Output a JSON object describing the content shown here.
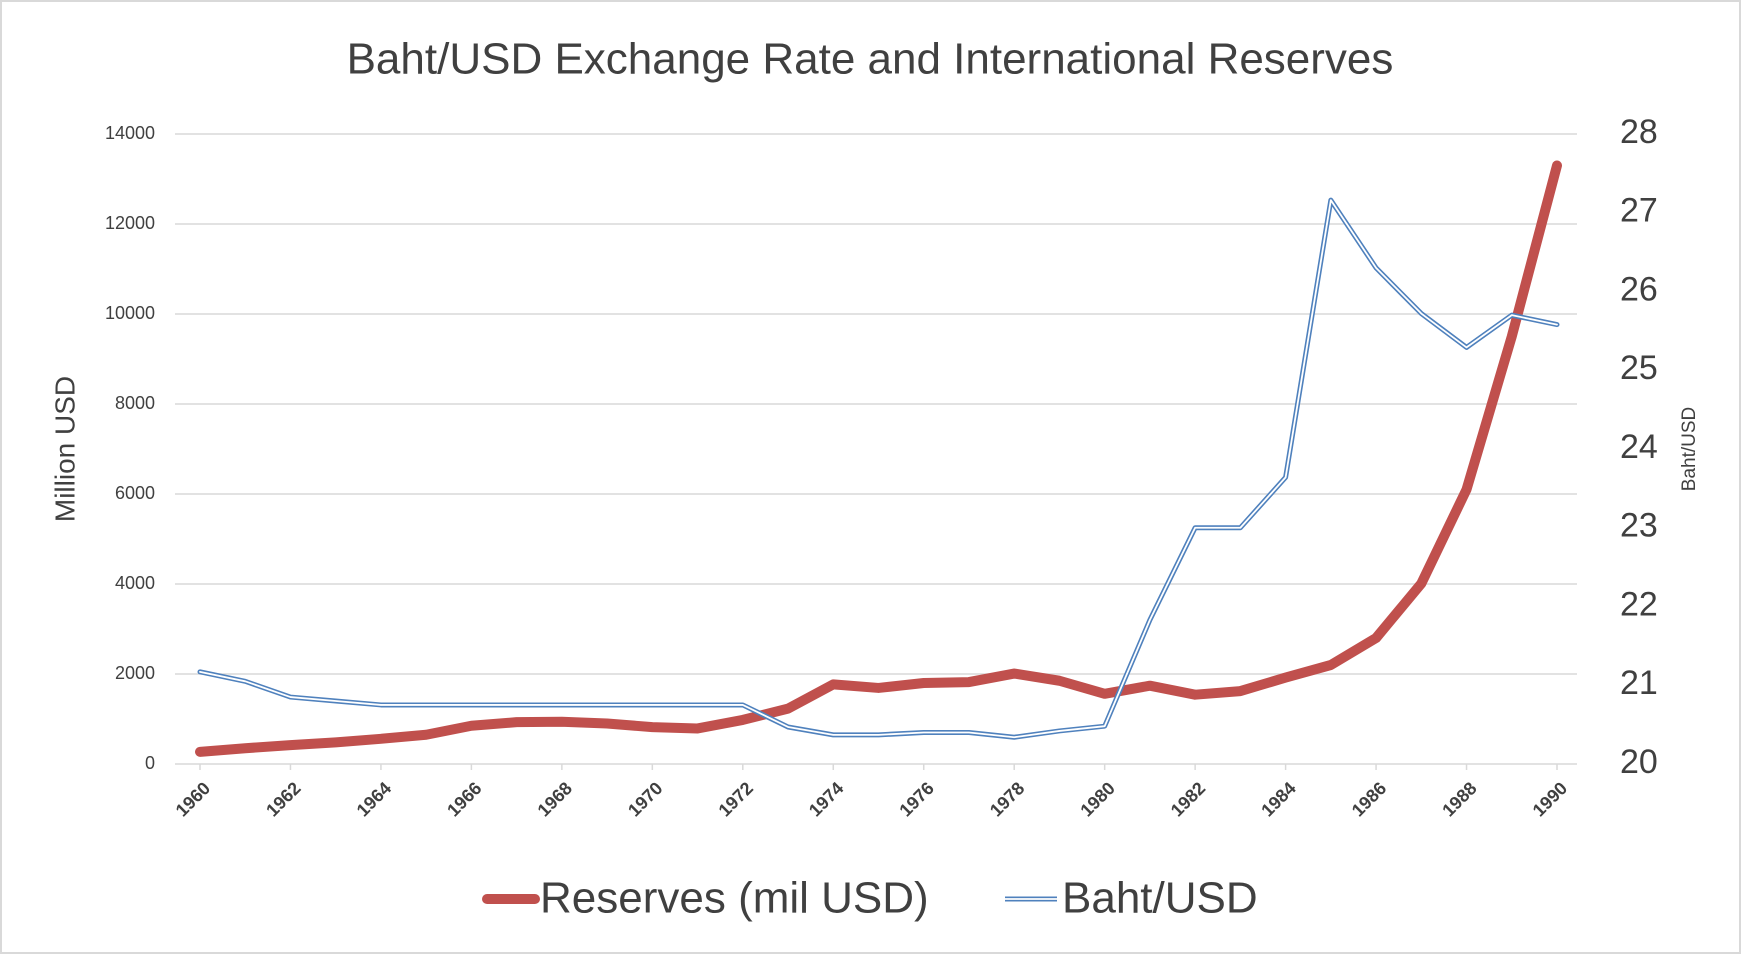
{
  "chart_data": {
    "type": "line",
    "title": "Baht/USD Exchange Rate and International Reserves",
    "y_label": "Million USD",
    "y2_label": "Baht/USD",
    "x": [
      1960,
      1961,
      1962,
      1963,
      1964,
      1965,
      1966,
      1967,
      1968,
      1969,
      1970,
      1971,
      1972,
      1973,
      1974,
      1975,
      1976,
      1977,
      1978,
      1979,
      1980,
      1981,
      1982,
      1983,
      1984,
      1985,
      1986,
      1987,
      1988,
      1989,
      1990
    ],
    "xlim": [
      1960,
      1990
    ],
    "xticks": [
      1960,
      1962,
      1964,
      1966,
      1968,
      1970,
      1972,
      1974,
      1976,
      1978,
      1980,
      1982,
      1984,
      1986,
      1988,
      1990
    ],
    "ylim": [
      0,
      14000
    ],
    "yticks": [
      0,
      2000,
      4000,
      6000,
      8000,
      10000,
      12000,
      14000
    ],
    "y2lim": [
      20,
      28
    ],
    "y2ticks": [
      20,
      21,
      22,
      23,
      24,
      25,
      26,
      27,
      28
    ],
    "grid": true,
    "legend": "bottom",
    "series": [
      {
        "name": "Reserves (mil USD)",
        "color": "#c0504d",
        "values": [
          270,
          350,
          420,
          480,
          560,
          650,
          850,
          930,
          940,
          900,
          820,
          790,
          980,
          1230,
          1770,
          1690,
          1800,
          1820,
          2010,
          1850,
          1560,
          1740,
          1540,
          1620,
          1920,
          2200,
          2800,
          4010,
          6100,
          9500,
          13300
        ]
      },
      {
        "name": "Baht/USD",
        "color": "#4f81bd",
        "axis": "y2",
        "values": [
          21.17,
          21.05,
          20.85,
          20.8,
          20.75,
          20.75,
          20.75,
          20.75,
          20.75,
          20.75,
          20.75,
          20.75,
          20.75,
          20.47,
          20.37,
          20.37,
          20.4,
          20.4,
          20.34,
          20.42,
          20.48,
          21.83,
          23.0,
          23.0,
          23.64,
          27.16,
          26.3,
          25.72,
          25.29,
          25.7,
          25.58
        ]
      }
    ]
  }
}
